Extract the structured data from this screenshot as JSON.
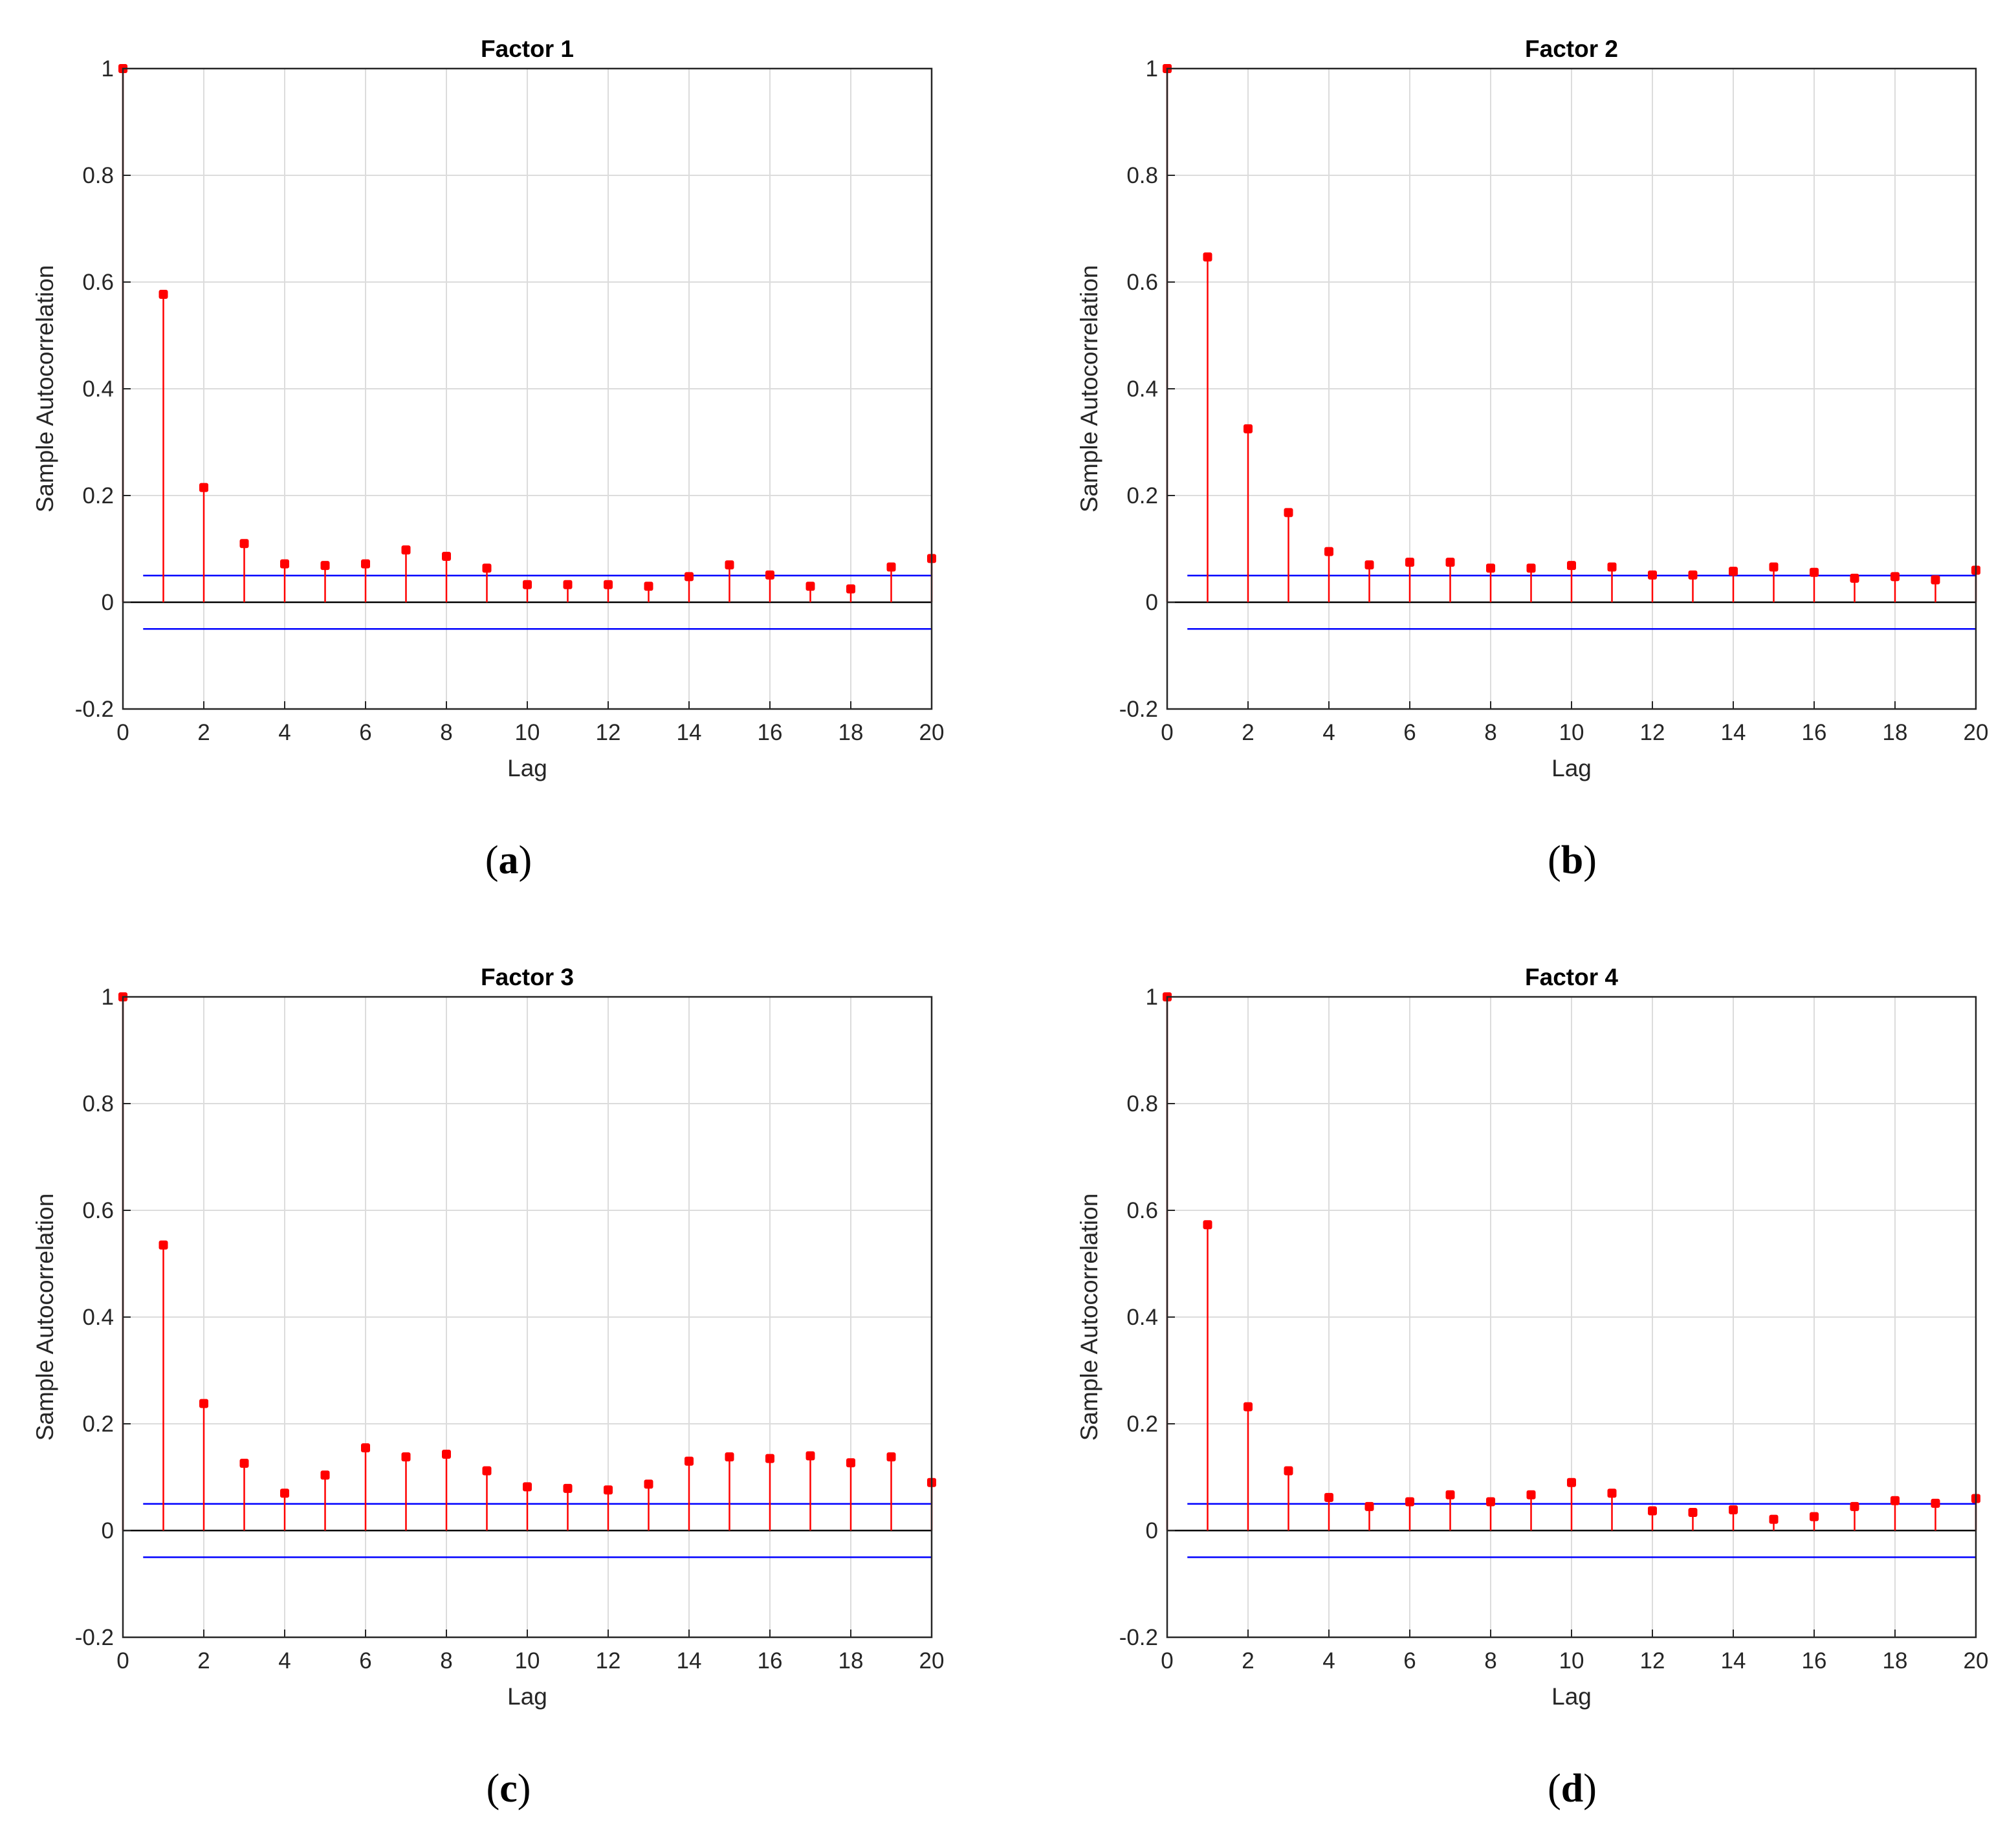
{
  "figure": {
    "colors": {
      "stem": "#ff0000",
      "marker": "#ff0000",
      "bound": "#0000ff",
      "zero_line": "#000000",
      "grid": "#dcdcdc",
      "axes": "#262626"
    }
  },
  "chart_data": [
    {
      "type": "stem",
      "panel_label": "(a)",
      "caption_letter": "a",
      "title": "Factor 1",
      "xlabel": "Lag",
      "ylabel": "Sample Autocorrelation",
      "xlim": [
        0,
        20
      ],
      "ylim": [
        -0.2,
        1
      ],
      "xticks": [
        "0",
        "2",
        "4",
        "6",
        "8",
        "10",
        "12",
        "14",
        "16",
        "18",
        "20"
      ],
      "yticks": [
        "-0.2",
        "0",
        "0.2",
        "0.4",
        "0.6",
        "0.8",
        "1"
      ],
      "grid": true,
      "confidence_bounds": [
        0.05,
        -0.05
      ],
      "lags": [
        0,
        1,
        2,
        3,
        4,
        5,
        6,
        7,
        8,
        9,
        10,
        11,
        12,
        13,
        14,
        15,
        16,
        17,
        18,
        19,
        20
      ],
      "values": [
        1.0,
        0.577,
        0.215,
        0.11,
        0.072,
        0.069,
        0.072,
        0.098,
        0.086,
        0.064,
        0.033,
        0.033,
        0.033,
        0.03,
        0.048,
        0.07,
        0.051,
        0.03,
        0.025,
        0.066,
        0.082
      ]
    },
    {
      "type": "stem",
      "panel_label": "(b)",
      "caption_letter": "b",
      "title": "Factor 2",
      "xlabel": "Lag",
      "ylabel": "Sample Autocorrelation",
      "xlim": [
        0,
        20
      ],
      "ylim": [
        -0.2,
        1
      ],
      "xticks": [
        "0",
        "2",
        "4",
        "6",
        "8",
        "10",
        "12",
        "14",
        "16",
        "18",
        "20"
      ],
      "yticks": [
        "-0.2",
        "0",
        "0.2",
        "0.4",
        "0.6",
        "0.8",
        "1"
      ],
      "grid": true,
      "confidence_bounds": [
        0.05,
        -0.05
      ],
      "lags": [
        0,
        1,
        2,
        3,
        4,
        5,
        6,
        7,
        8,
        9,
        10,
        11,
        12,
        13,
        14,
        15,
        16,
        17,
        18,
        19,
        20
      ],
      "values": [
        1.0,
        0.647,
        0.325,
        0.168,
        0.095,
        0.07,
        0.075,
        0.075,
        0.064,
        0.064,
        0.069,
        0.066,
        0.051,
        0.051,
        0.058,
        0.066,
        0.056,
        0.045,
        0.048,
        0.042,
        0.06
      ]
    },
    {
      "type": "stem",
      "panel_label": "(c)",
      "caption_letter": "c",
      "title": "Factor 3",
      "xlabel": "Lag",
      "ylabel": "Sample Autocorrelation",
      "xlim": [
        0,
        20
      ],
      "ylim": [
        -0.2,
        1
      ],
      "xticks": [
        "0",
        "2",
        "4",
        "6",
        "8",
        "10",
        "12",
        "14",
        "16",
        "18",
        "20"
      ],
      "yticks": [
        "-0.2",
        "0",
        "0.2",
        "0.4",
        "0.6",
        "0.8",
        "1"
      ],
      "grid": true,
      "confidence_bounds": [
        0.05,
        -0.05
      ],
      "lags": [
        0,
        1,
        2,
        3,
        4,
        5,
        6,
        7,
        8,
        9,
        10,
        11,
        12,
        13,
        14,
        15,
        16,
        17,
        18,
        19,
        20
      ],
      "values": [
        1.0,
        0.535,
        0.238,
        0.126,
        0.07,
        0.104,
        0.155,
        0.138,
        0.143,
        0.112,
        0.082,
        0.079,
        0.076,
        0.087,
        0.13,
        0.138,
        0.135,
        0.14,
        0.127,
        0.138,
        0.09
      ]
    },
    {
      "type": "stem",
      "panel_label": "(d)",
      "caption_letter": "d",
      "title": "Factor 4",
      "xlabel": "Lag",
      "ylabel": "Sample Autocorrelation",
      "xlim": [
        0,
        20
      ],
      "ylim": [
        -0.2,
        1
      ],
      "xticks": [
        "0",
        "2",
        "4",
        "6",
        "8",
        "10",
        "12",
        "14",
        "16",
        "18",
        "20"
      ],
      "yticks": [
        "-0.2",
        "0",
        "0.2",
        "0.4",
        "0.6",
        "0.8",
        "1"
      ],
      "grid": true,
      "confidence_bounds": [
        0.05,
        -0.05
      ],
      "lags": [
        0,
        1,
        2,
        3,
        4,
        5,
        6,
        7,
        8,
        9,
        10,
        11,
        12,
        13,
        14,
        15,
        16,
        17,
        18,
        19,
        20
      ],
      "values": [
        1.0,
        0.573,
        0.232,
        0.112,
        0.062,
        0.045,
        0.054,
        0.067,
        0.054,
        0.067,
        0.09,
        0.07,
        0.037,
        0.034,
        0.039,
        0.021,
        0.026,
        0.045,
        0.056,
        0.051,
        0.06
      ]
    }
  ]
}
